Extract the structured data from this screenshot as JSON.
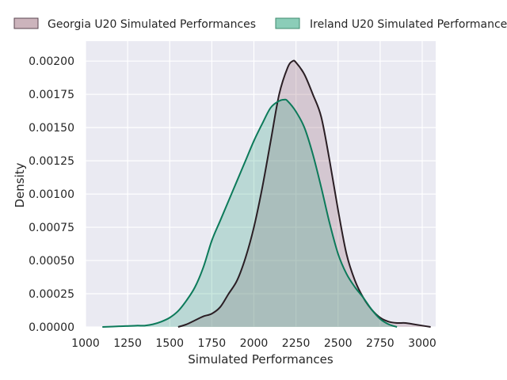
{
  "chart_data": {
    "type": "area",
    "xlabel": "Simulated Performances",
    "ylabel": "Density",
    "xlim": [
      1000,
      3080
    ],
    "ylim": [
      0,
      0.00215
    ],
    "xticks": [
      1000,
      1250,
      1500,
      1750,
      2000,
      2250,
      2500,
      2750,
      3000
    ],
    "xtick_labels": [
      "1000",
      "1250",
      "1500",
      "1750",
      "2000",
      "2250",
      "2500",
      "2750",
      "3000"
    ],
    "yticks": [
      0,
      0.00025,
      0.0005,
      0.00075,
      0.001,
      0.00125,
      0.0015,
      0.00175,
      0.002
    ],
    "ytick_labels": [
      "0.00000",
      "0.00025",
      "0.00050",
      "0.00075",
      "0.00100",
      "0.00125",
      "0.00150",
      "0.00175",
      "0.00200"
    ],
    "grid": true,
    "legend_position": "top, outside plot",
    "series": [
      {
        "name": "Georgia U20 Simulated Performances",
        "fill_color": "#a27785",
        "line_color": "#2a1e24",
        "x": [
          1550,
          1600,
          1650,
          1700,
          1750,
          1800,
          1850,
          1900,
          1950,
          2000,
          2050,
          2100,
          2150,
          2200,
          2230,
          2250,
          2300,
          2350,
          2400,
          2450,
          2500,
          2550,
          2600,
          2650,
          2700,
          2750,
          2800,
          2850,
          2900,
          2950,
          3000,
          3050
        ],
        "y": [
          0,
          2e-05,
          5e-05,
          8e-05,
          0.0001,
          0.00015,
          0.00025,
          0.00035,
          0.00052,
          0.00075,
          0.00105,
          0.0014,
          0.00175,
          0.00195,
          0.002,
          0.00199,
          0.0019,
          0.00175,
          0.00158,
          0.00125,
          0.00088,
          0.00055,
          0.00035,
          0.00022,
          0.00013,
          7e-05,
          4e-05,
          3e-05,
          3e-05,
          2e-05,
          1e-05,
          0
        ]
      },
      {
        "name": "Ireland U20 Simulated Performances",
        "fill_color": "#2ca47e",
        "line_color": "#0c7a5a",
        "x": [
          1100,
          1200,
          1300,
          1350,
          1400,
          1450,
          1500,
          1550,
          1600,
          1650,
          1700,
          1750,
          1800,
          1850,
          1900,
          1950,
          2000,
          2050,
          2100,
          2150,
          2180,
          2200,
          2250,
          2300,
          2350,
          2400,
          2450,
          2500,
          2550,
          2600,
          2650,
          2700,
          2750,
          2800,
          2850
        ],
        "y": [
          0,
          5e-06,
          1e-05,
          1e-05,
          2e-05,
          4e-05,
          7e-05,
          0.00012,
          0.0002,
          0.0003,
          0.00045,
          0.00065,
          0.0008,
          0.00095,
          0.0011,
          0.00125,
          0.0014,
          0.00153,
          0.00165,
          0.0017,
          0.00171,
          0.0017,
          0.00162,
          0.0015,
          0.0013,
          0.00105,
          0.00078,
          0.00055,
          0.0004,
          0.0003,
          0.00022,
          0.00013,
          6e-05,
          2e-05,
          0
        ]
      }
    ]
  }
}
